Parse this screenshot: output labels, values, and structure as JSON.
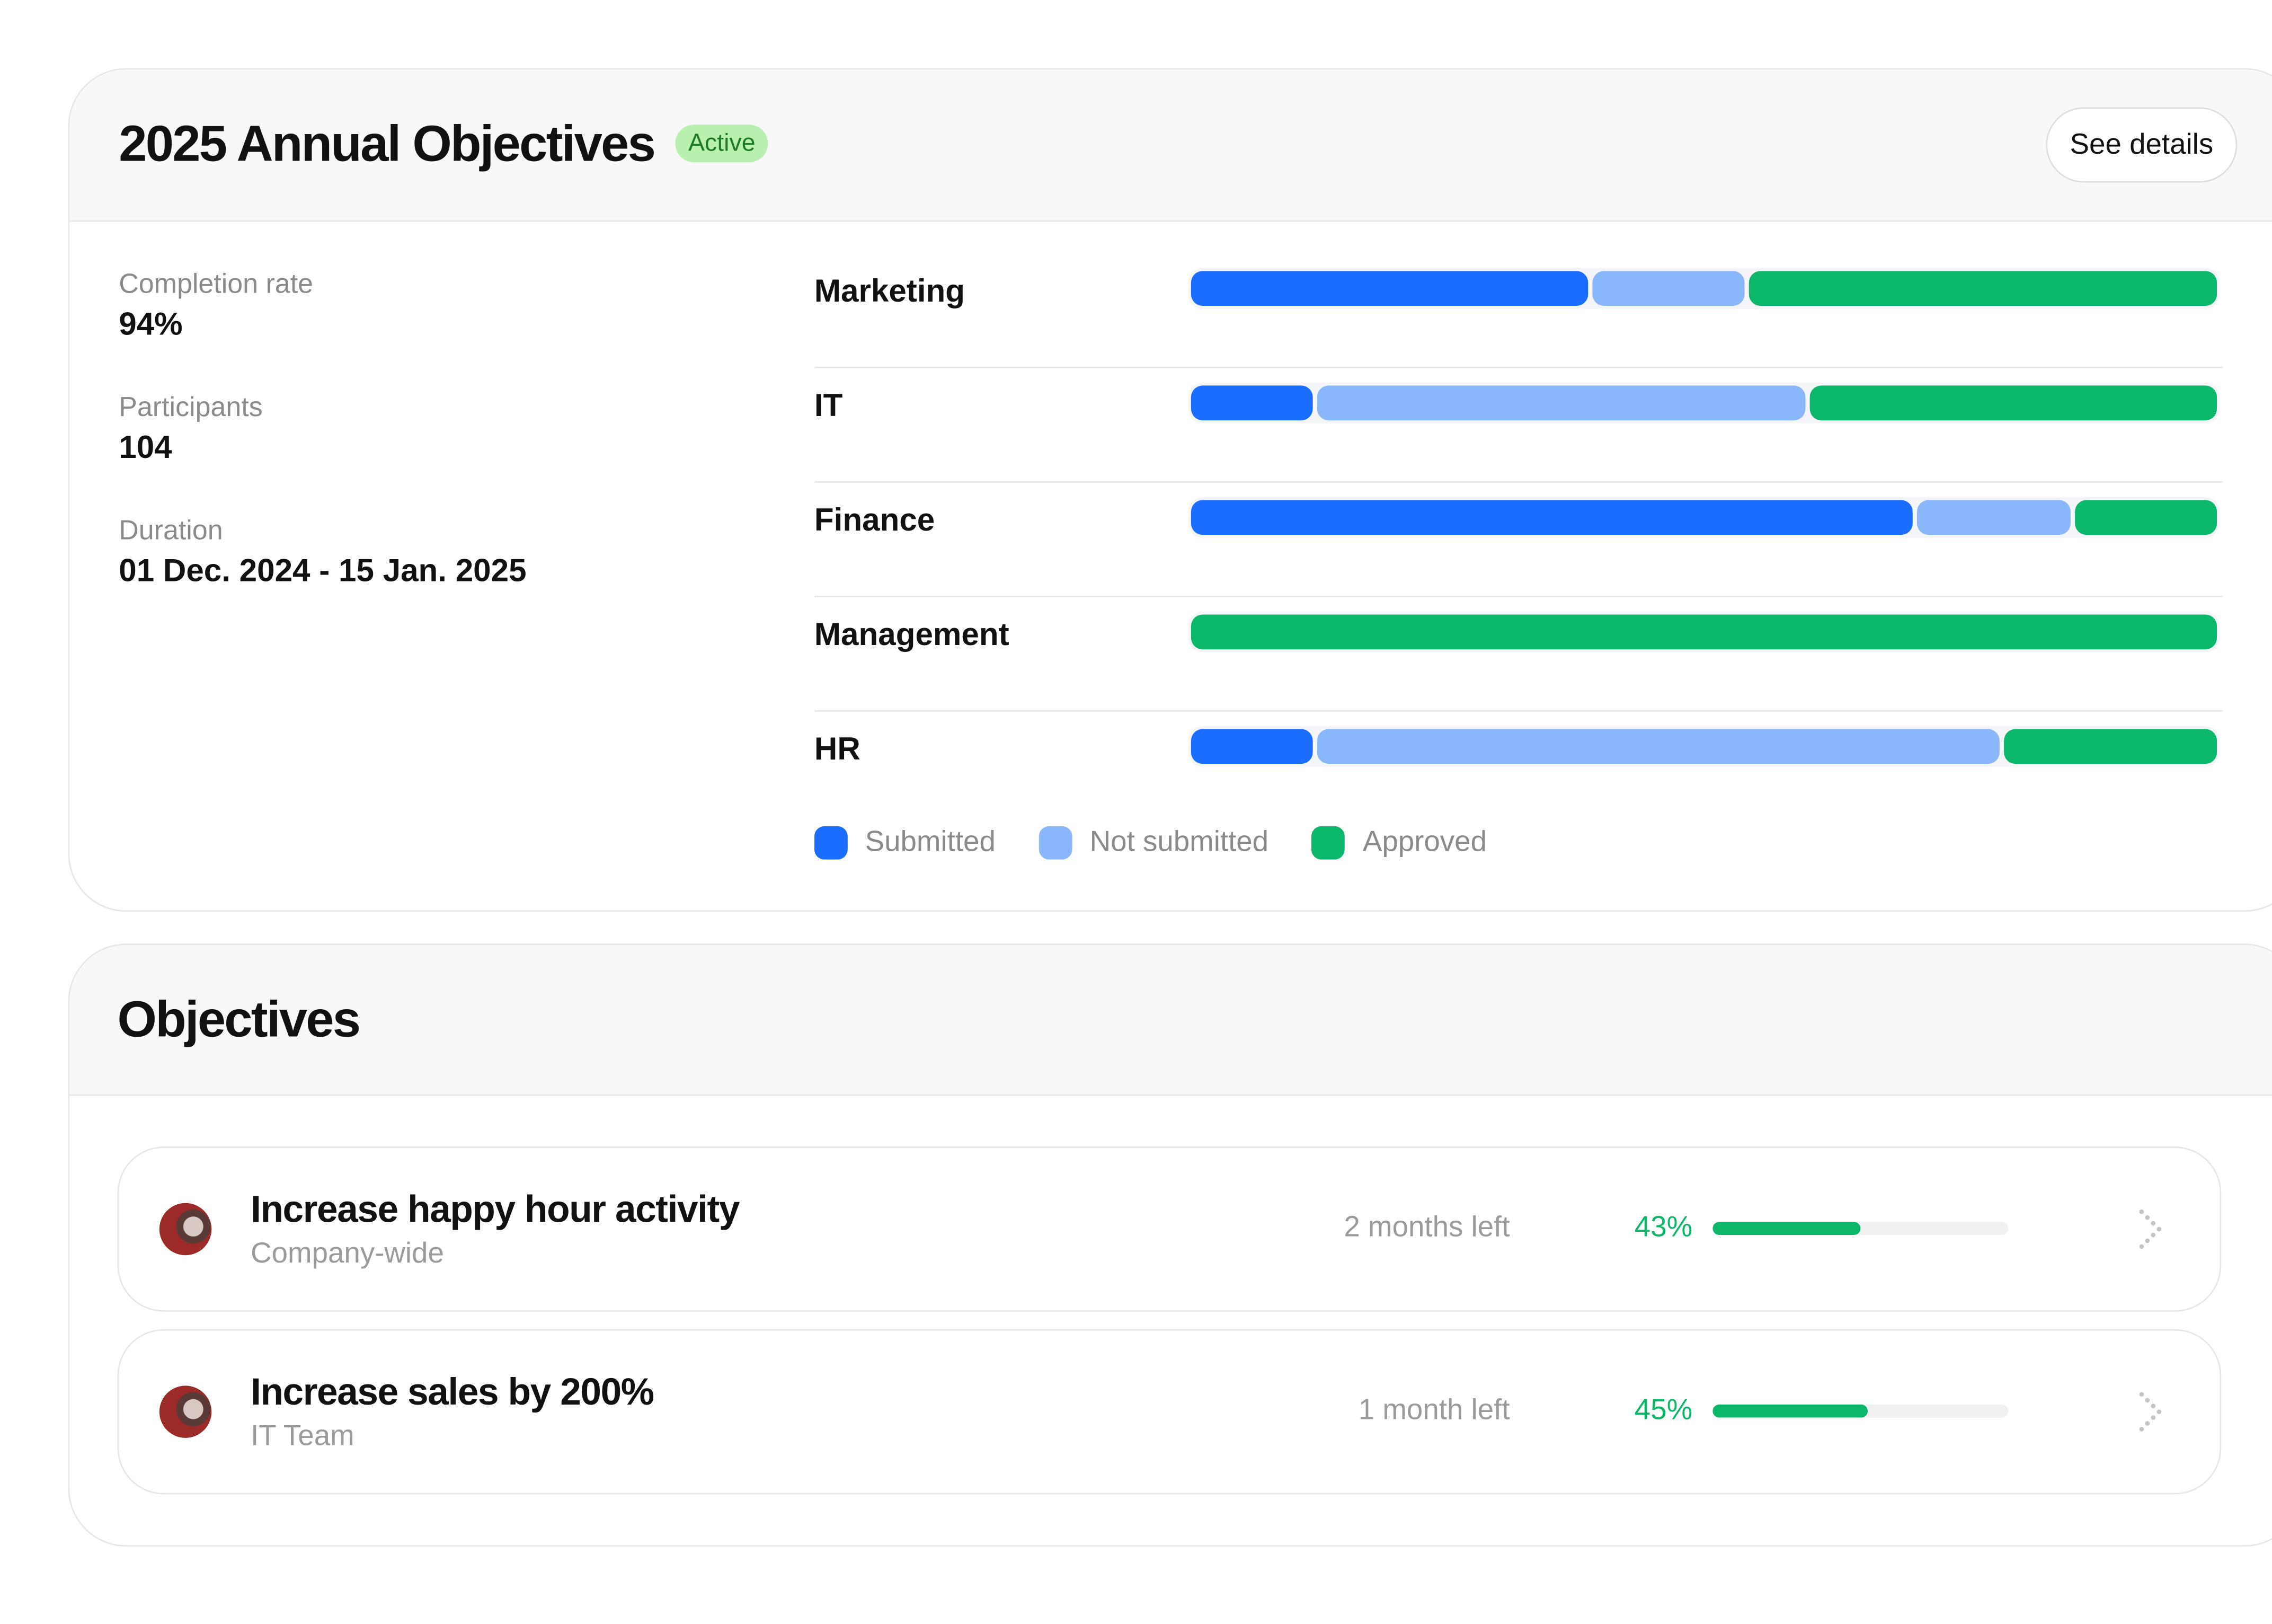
{
  "summary": {
    "title": "2025 Annual Objectives",
    "status_badge": "Active",
    "see_details_label": "See details",
    "stats": [
      {
        "label": "Completion rate",
        "value": "94%"
      },
      {
        "label": "Participants",
        "value": "104"
      },
      {
        "label": "Duration",
        "value": "01 Dec. 2024 - 15 Jan. 2025"
      }
    ]
  },
  "chart_data": {
    "type": "bar",
    "stacked": true,
    "orientation": "horizontal",
    "categories": [
      "Marketing",
      "IT",
      "Finance",
      "Management",
      "HR"
    ],
    "series": [
      {
        "name": "Submitted",
        "color": "#1a6dff",
        "values": [
          39,
          12,
          71,
          0,
          12
        ]
      },
      {
        "name": "Not submitted",
        "color": "#8ab6fb",
        "values": [
          15,
          48,
          15,
          0,
          67
        ]
      },
      {
        "name": "Approved",
        "color": "#0bb86b",
        "values": [
          46,
          40,
          14,
          100,
          21
        ]
      }
    ],
    "legend": "bottom-left"
  },
  "objectives": {
    "title": "Objectives",
    "items": [
      {
        "name": "Increase happy hour activity",
        "scope": "Company-wide",
        "time_left": "2 months left",
        "progress_label": "43%",
        "progress": 0.43,
        "avatar": "user-photo"
      },
      {
        "name": "Increase sales by 200%",
        "scope": "IT Team",
        "time_left": "1 month left",
        "progress_label": "45%",
        "progress": 0.45,
        "avatar": "user-photo"
      }
    ]
  },
  "colors": {
    "accent_green": "#0cb76a",
    "badge_bg": "#b9f0b0"
  }
}
